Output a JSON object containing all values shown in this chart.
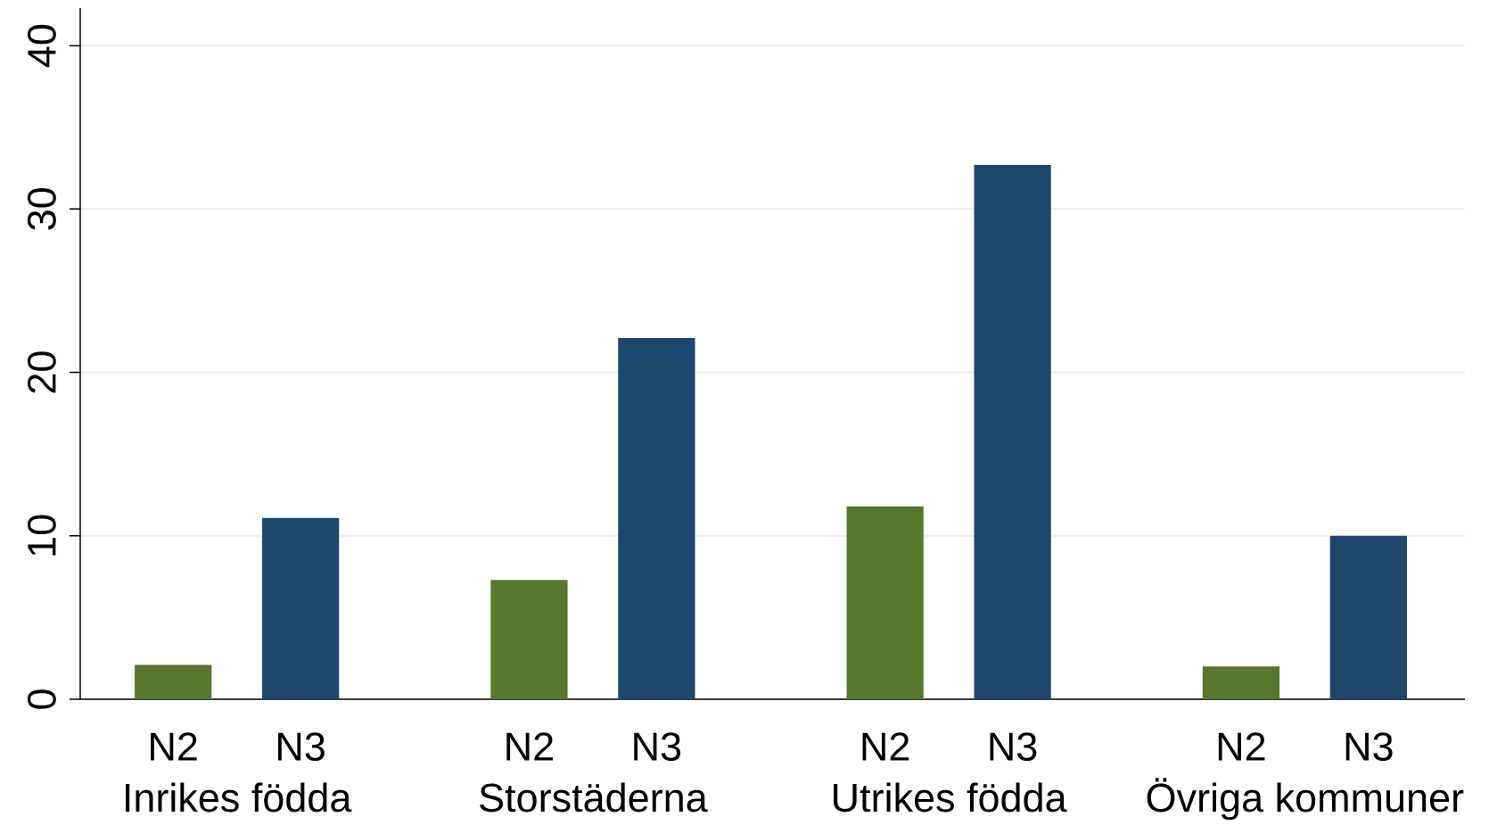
{
  "chart_data": {
    "type": "bar",
    "categories": [
      "Inrikes födda",
      "Storstäderna",
      "Utrikes födda",
      "Övriga kommuner"
    ],
    "series": [
      {
        "name": "N2",
        "color": "#587630",
        "values": [
          2.1,
          7.3,
          11.8,
          2.0
        ]
      },
      {
        "name": "N3",
        "color": "#1e466e",
        "values": [
          11.1,
          22.1,
          32.7,
          10.0
        ]
      }
    ],
    "ylim": [
      0,
      42.3
    ],
    "yticks": [
      0,
      10,
      20,
      30,
      40
    ],
    "grid": "y"
  }
}
